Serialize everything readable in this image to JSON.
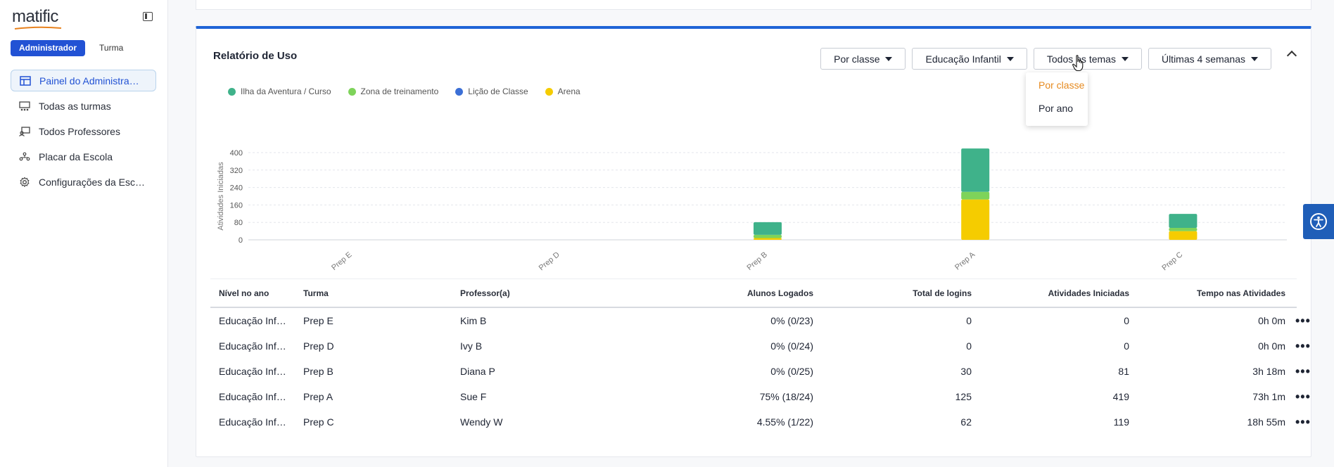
{
  "app": {
    "logo": "matific"
  },
  "sidebar": {
    "roles": [
      "Administrador",
      "Turma"
    ],
    "items": [
      {
        "label": "Painel do Administra…",
        "icon": "dashboard-icon",
        "active": true
      },
      {
        "label": "Todas as turmas",
        "icon": "classes-icon",
        "active": false
      },
      {
        "label": "Todos Professores",
        "icon": "teachers-icon",
        "active": false
      },
      {
        "label": "Placar da Escola",
        "icon": "leaderboard-icon",
        "active": false
      },
      {
        "label": "Configurações da Esc…",
        "icon": "gear-icon",
        "active": false
      }
    ]
  },
  "report": {
    "title": "Relatório de Uso",
    "filters": {
      "group_by": "Por classe",
      "grade": "Educação Infantil",
      "topics": "Todos os temas",
      "period": "Últimas 4 semanas"
    },
    "dropdown": {
      "options": [
        "Por classe",
        "Por ano"
      ],
      "selected": "Por classe"
    },
    "legend": [
      {
        "label": "Ilha da Aventura / Curso",
        "color": "#3fb28a"
      },
      {
        "label": "Zona de treinamento",
        "color": "#7ed35a"
      },
      {
        "label": "Lição de Classe",
        "color": "#3b6fd6"
      },
      {
        "label": "Arena",
        "color": "#f5cc00"
      }
    ]
  },
  "chart_data": {
    "type": "bar",
    "stacked": true,
    "ylabel": "Atividades Iniciadas",
    "ylim": [
      0,
      400
    ],
    "yticks": [
      0,
      80,
      160,
      240,
      320,
      400
    ],
    "categories": [
      "Prep E",
      "Prep D",
      "Prep B",
      "Prep A",
      "Prep C"
    ],
    "series": [
      {
        "name": "Arena",
        "color": "#f5cc00",
        "values": [
          0,
          0,
          8,
          185,
          40
        ]
      },
      {
        "name": "Lição de Classe",
        "color": "#3b6fd6",
        "values": [
          0,
          0,
          0,
          0,
          0
        ]
      },
      {
        "name": "Zona de treinamento",
        "color": "#7ed35a",
        "values": [
          0,
          0,
          15,
          35,
          15
        ]
      },
      {
        "name": "Ilha da Aventura / Curso",
        "color": "#3fb28a",
        "values": [
          0,
          0,
          58,
          199,
          64
        ]
      }
    ],
    "grid": true
  },
  "table": {
    "headers": [
      "Nível no ano",
      "Turma",
      "Professor(a)",
      "Alunos Logados",
      "Total de logins",
      "Atividades Iniciadas",
      "Tempo nas Atividades"
    ],
    "rows": [
      [
        "Educação Inf…",
        "Prep E",
        "Kim B",
        "0% (0/23)",
        "0",
        "0",
        "0h 0m"
      ],
      [
        "Educação Inf…",
        "Prep D",
        "Ivy B",
        "0% (0/24)",
        "0",
        "0",
        "0h 0m"
      ],
      [
        "Educação Inf…",
        "Prep B",
        "Diana P",
        "0% (0/25)",
        "30",
        "81",
        "3h 18m"
      ],
      [
        "Educação Inf…",
        "Prep A",
        "Sue F",
        "75% (18/24)",
        "125",
        "419",
        "73h 1m"
      ],
      [
        "Educação Inf…",
        "Prep C",
        "Wendy W",
        "4.55% (1/22)",
        "62",
        "119",
        "18h 55m"
      ]
    ],
    "row_menu": "•••"
  }
}
